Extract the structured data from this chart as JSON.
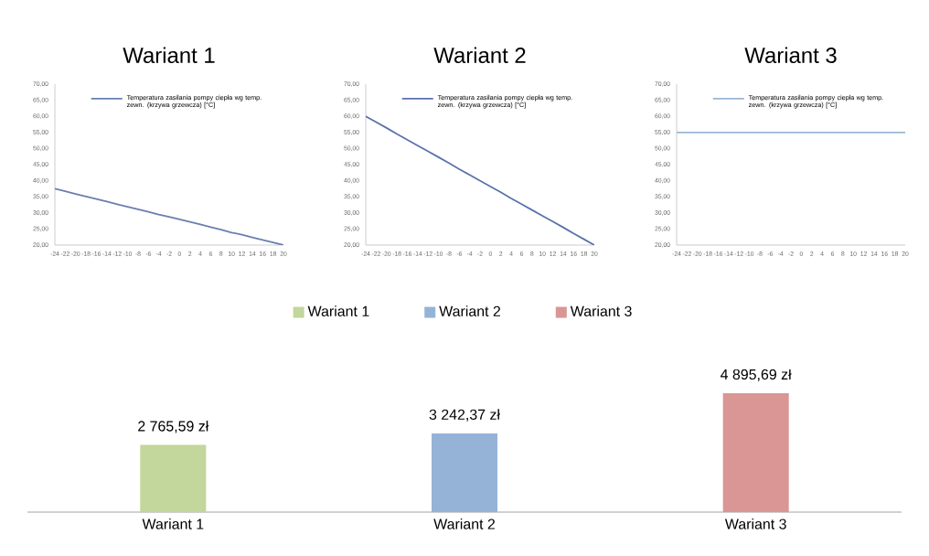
{
  "chart_data": [
    {
      "type": "line",
      "title": "Wariant 1",
      "xlim": [
        -24,
        20
      ],
      "ylim": [
        20,
        70
      ],
      "legend": "top right",
      "xticks": [
        -24,
        -22,
        -20,
        -18,
        -16,
        -14,
        -12,
        -10,
        -8,
        -6,
        -4,
        -2,
        0,
        2,
        4,
        6,
        8,
        10,
        12,
        14,
        16,
        18,
        20
      ],
      "yticks": [
        {
          "value": 20,
          "label": "20,00"
        },
        {
          "value": 25,
          "label": "25,00"
        },
        {
          "value": 30,
          "label": "30,00"
        },
        {
          "value": 35,
          "label": "35,00"
        },
        {
          "value": 40,
          "label": "40,00"
        },
        {
          "value": 45,
          "label": "45,00"
        },
        {
          "value": 50,
          "label": "50,00"
        },
        {
          "value": 55,
          "label": "55,00"
        },
        {
          "value": 60,
          "label": "60,00"
        },
        {
          "value": 65,
          "label": "65,00"
        },
        {
          "value": 70,
          "label": "70,00"
        }
      ],
      "series": [
        {
          "name": "Temperatura zasilania pompy ciepła wg temp. zewn. (krzywa grzewcza) [°C]",
          "color": "#6a7fb0",
          "x": [
            -24,
            -22,
            -20,
            -18,
            -16,
            -14,
            -12,
            -10,
            -8,
            -6,
            -4,
            -2,
            0,
            2,
            4,
            6,
            8,
            10,
            12,
            14,
            16,
            18,
            20
          ],
          "values": [
            37.5,
            36.7,
            35.9,
            35.1,
            34.3,
            33.5,
            32.7,
            31.9,
            31.1,
            30.3,
            29.5,
            28.8,
            28.0,
            27.2,
            26.4,
            25.6,
            24.8,
            23.9,
            23.2,
            22.4,
            21.6,
            20.8,
            20.0
          ]
        }
      ]
    },
    {
      "type": "line",
      "title": "Wariant 2",
      "xlim": [
        -24,
        20
      ],
      "ylim": [
        20,
        70
      ],
      "legend": "top right",
      "xticks": [
        -24,
        -22,
        -20,
        -18,
        -16,
        -14,
        -12,
        -10,
        -8,
        -6,
        -4,
        -2,
        0,
        2,
        4,
        6,
        8,
        10,
        12,
        14,
        16,
        18,
        20
      ],
      "yticks": [
        {
          "value": 20,
          "label": "20,00"
        },
        {
          "value": 25,
          "label": "25,00"
        },
        {
          "value": 30,
          "label": "30,00"
        },
        {
          "value": 35,
          "label": "35,00"
        },
        {
          "value": 40,
          "label": "40,00"
        },
        {
          "value": 45,
          "label": "45,00"
        },
        {
          "value": 50,
          "label": "50,00"
        },
        {
          "value": 55,
          "label": "55,00"
        },
        {
          "value": 60,
          "label": "60,00"
        },
        {
          "value": 65,
          "label": "65,00"
        },
        {
          "value": 70,
          "label": "70,00"
        }
      ],
      "series": [
        {
          "name": "Temperatura zasilania pompy ciepła wg temp. zewn. (krzywa grzewcza) [°C]",
          "color": "#5a73ab",
          "x": [
            -24,
            -22,
            -20,
            -18,
            -16,
            -14,
            -12,
            -10,
            -8,
            -6,
            -4,
            -2,
            0,
            2,
            4,
            6,
            8,
            10,
            12,
            14,
            16,
            18,
            20
          ],
          "values": [
            60.0,
            58.2,
            56.4,
            54.5,
            52.7,
            50.9,
            49.1,
            47.3,
            45.5,
            43.6,
            41.8,
            40.0,
            38.2,
            36.4,
            34.5,
            32.7,
            30.9,
            29.1,
            27.3,
            25.5,
            23.6,
            21.8,
            20.0
          ]
        }
      ]
    },
    {
      "type": "line",
      "title": "Wariant 3",
      "xlim": [
        -24,
        20
      ],
      "ylim": [
        20,
        70
      ],
      "legend": "top right",
      "xticks": [
        -24,
        -22,
        -20,
        -18,
        -16,
        -14,
        -12,
        -10,
        -8,
        -6,
        -4,
        -2,
        0,
        2,
        4,
        6,
        8,
        10,
        12,
        14,
        16,
        18,
        20
      ],
      "yticks": [
        {
          "value": 20,
          "label": "20,00"
        },
        {
          "value": 25,
          "label": "25,00"
        },
        {
          "value": 30,
          "label": "30,00"
        },
        {
          "value": 35,
          "label": "35,00"
        },
        {
          "value": 40,
          "label": "40,00"
        },
        {
          "value": 45,
          "label": "45,00"
        },
        {
          "value": 50,
          "label": "50,00"
        },
        {
          "value": 55,
          "label": "55,00"
        },
        {
          "value": 60,
          "label": "60,00"
        },
        {
          "value": 65,
          "label": "65,00"
        },
        {
          "value": 70,
          "label": "70,00"
        }
      ],
      "series": [
        {
          "name": "Temperatura zasilania pompy ciepła wg temp. zewn. (krzywa grzewcza) [°C]",
          "color": "#9db4d6",
          "x": [
            -24,
            -22,
            -20,
            -18,
            -16,
            -14,
            -12,
            -10,
            -8,
            -6,
            -4,
            -2,
            0,
            2,
            4,
            6,
            8,
            10,
            12,
            14,
            16,
            18,
            20
          ],
          "values": [
            55,
            55,
            55,
            55,
            55,
            55,
            55,
            55,
            55,
            55,
            55,
            55,
            55,
            55,
            55,
            55,
            55,
            55,
            55,
            55,
            55,
            55,
            55
          ]
        }
      ]
    },
    {
      "type": "bar",
      "categories": [
        "Wariant 1",
        "Wariant 2",
        "Wariant 3"
      ],
      "legend": "top",
      "series": [
        {
          "name": "Wariant 1",
          "color": "#c3d69b",
          "values": [
            2765.59,
            null,
            null
          ],
          "value_labels": [
            "2 765,59 zł",
            null,
            null
          ]
        },
        {
          "name": "Wariant 2",
          "color": "#95b3d7",
          "values": [
            null,
            3242.37,
            null
          ],
          "value_labels": [
            null,
            "3 242,37 zł",
            null
          ]
        },
        {
          "name": "Wariant 3",
          "color": "#d99694",
          "values": [
            null,
            null,
            4895.69
          ],
          "value_labels": [
            null,
            null,
            "4 895,69 zł"
          ]
        }
      ]
    }
  ]
}
